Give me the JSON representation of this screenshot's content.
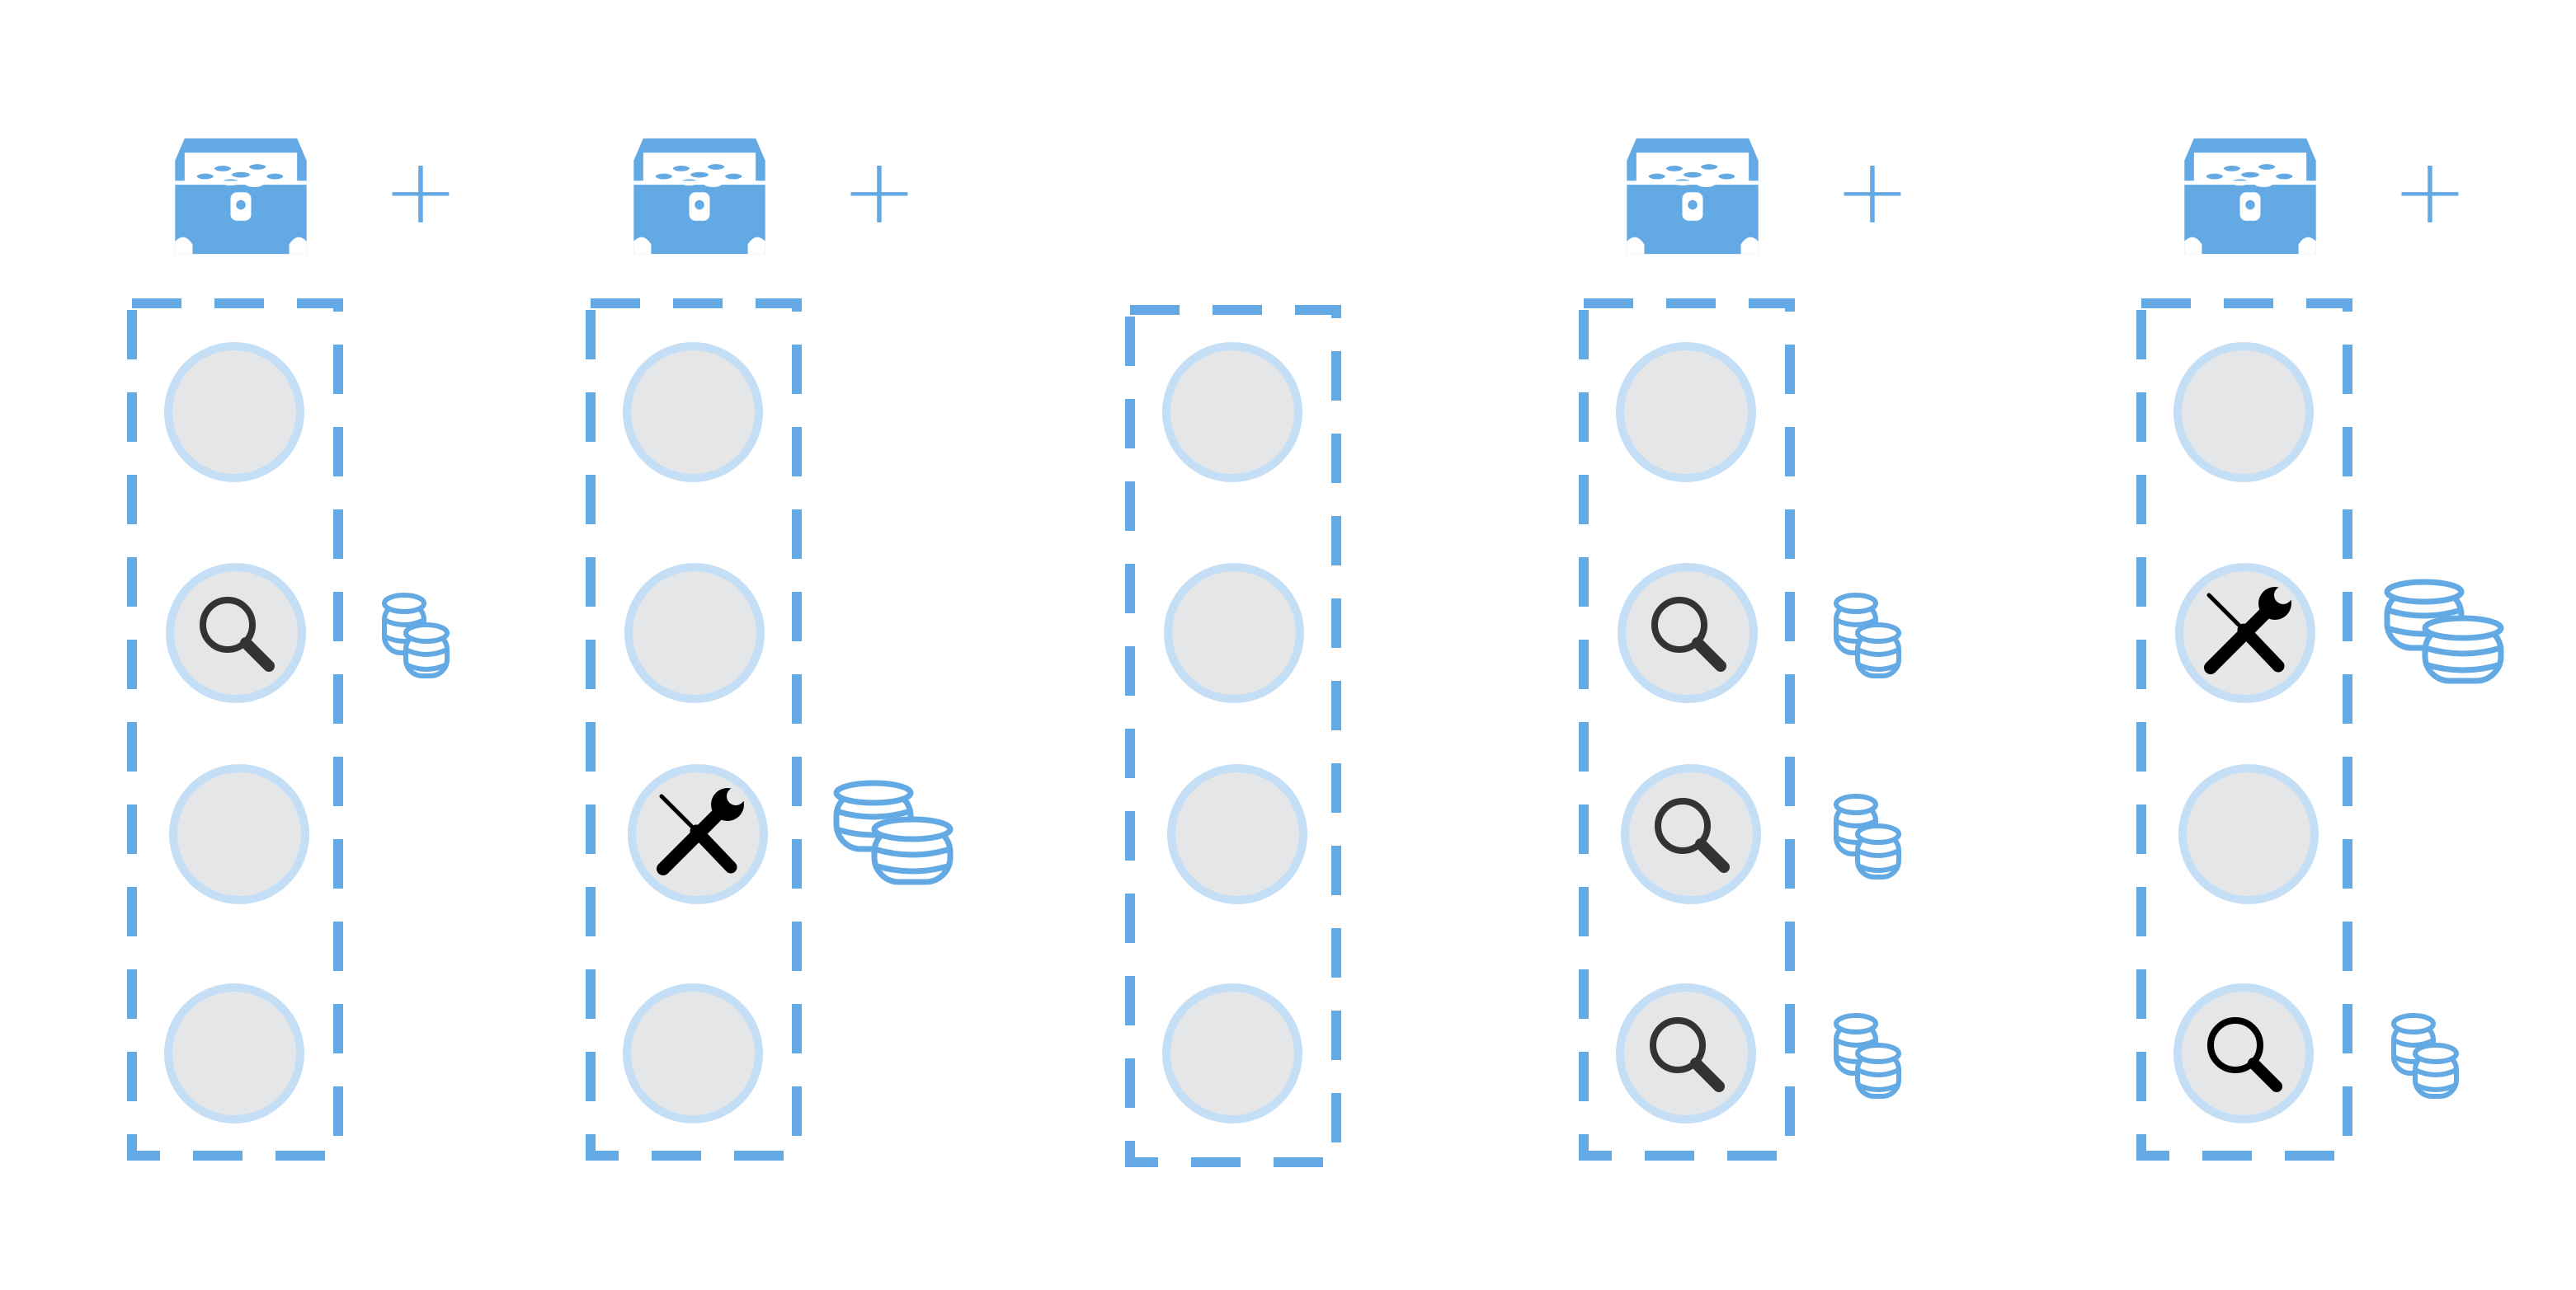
{
  "colors": {
    "accent": "#63a9e3",
    "slot_fill": "#e5e6e8",
    "slot_ring": "#c4def6",
    "icon_dark": "#333333",
    "icon_black": "#000000"
  },
  "plus_symbol": "+",
  "columns": [
    {
      "chest": true,
      "plus": true,
      "slots": [
        {
          "icon": null,
          "coins": null
        },
        {
          "icon": "magnifier-icon",
          "coins": "small"
        },
        {
          "icon": null,
          "coins": null
        },
        {
          "icon": null,
          "coins": null
        }
      ]
    },
    {
      "chest": true,
      "plus": true,
      "slots": [
        {
          "icon": null,
          "coins": null
        },
        {
          "icon": null,
          "coins": null
        },
        {
          "icon": "tools-icon",
          "coins": "large"
        },
        {
          "icon": null,
          "coins": null
        }
      ]
    },
    {
      "chest": false,
      "plus": false,
      "slots": [
        {
          "icon": null,
          "coins": null
        },
        {
          "icon": null,
          "coins": null
        },
        {
          "icon": null,
          "coins": null
        },
        {
          "icon": null,
          "coins": null
        }
      ]
    },
    {
      "chest": true,
      "plus": true,
      "slots": [
        {
          "icon": null,
          "coins": null
        },
        {
          "icon": "magnifier-icon",
          "coins": "small"
        },
        {
          "icon": "magnifier-icon",
          "coins": "small"
        },
        {
          "icon": "magnifier-icon",
          "coins": "small"
        }
      ]
    },
    {
      "chest": true,
      "plus": true,
      "slots": [
        {
          "icon": null,
          "coins": null
        },
        {
          "icon": "tools-icon",
          "coins": "large"
        },
        {
          "icon": null,
          "coins": null
        },
        {
          "icon": "magnifier-icon",
          "coins": "small"
        }
      ]
    }
  ]
}
